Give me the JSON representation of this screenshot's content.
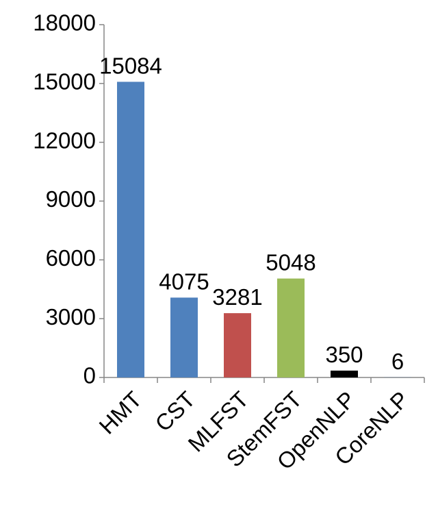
{
  "chart_data": {
    "type": "bar",
    "categories": [
      "HMT",
      "CST",
      "MLFST",
      "StemFST",
      "OpenNLP",
      "CoreNLP"
    ],
    "values": [
      15084,
      4075,
      3281,
      5048,
      350,
      6
    ],
    "colors": [
      "#4f81bd",
      "#4f81bd",
      "#c0504d",
      "#9bbb59",
      "#000000",
      "#4f81bd"
    ],
    "ylim": [
      0,
      18000
    ],
    "yticks": [
      0,
      3000,
      6000,
      9000,
      12000,
      15000,
      18000
    ]
  }
}
